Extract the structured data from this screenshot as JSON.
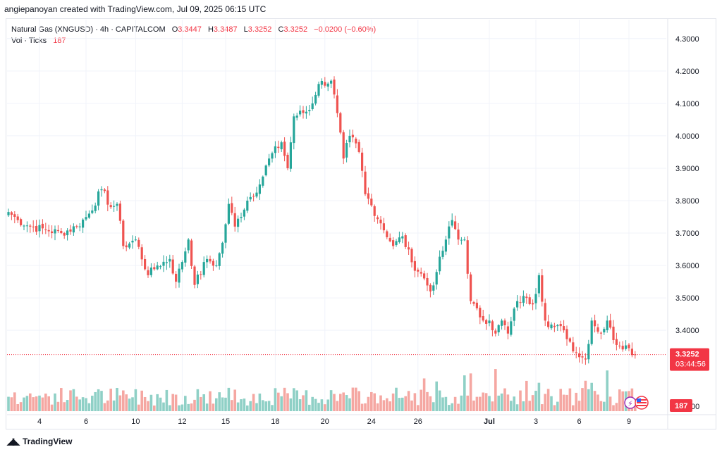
{
  "credit": "angiepanoyan created with TradingView.com, Jul 09, 2025 06:15 UTC",
  "header": {
    "symbol": "Natural Gas (XNGUSD) · 4h · CAPITALCOM",
    "o_label": "O",
    "o_value": "3.3447",
    "h_label": "H",
    "h_value": "3.3487",
    "l_label": "L",
    "l_value": "3.3252",
    "c_label": "C",
    "c_value": "3.3252",
    "change": "−0.0200 (−0.60%)",
    "vol_label": "Vol · Ticks",
    "vol_value": "187"
  },
  "footer": {
    "brand": "TradingView",
    "logo_icon": "tradingview-logo-icon"
  },
  "colors": {
    "up": "#26a69a",
    "down": "#ef5350",
    "up_vol": "#8fd0c6",
    "down_vol": "#f5a7a2",
    "price_tag": "#f23645"
  },
  "chart_data": {
    "type": "candlestick",
    "ylim": [
      3.27,
      4.33
    ],
    "y_ticks": [
      "4.3000",
      "4.2000",
      "4.1000",
      "4.0000",
      "3.9000",
      "3.8000",
      "3.7000",
      "3.6000",
      "3.5000",
      "3.4000"
    ],
    "x_ticks": [
      {
        "label": "4",
        "bar": 10
      },
      {
        "label": "6",
        "bar": 25
      },
      {
        "label": "10",
        "bar": 41
      },
      {
        "label": "12",
        "bar": 56
      },
      {
        "label": "15",
        "bar": 70
      },
      {
        "label": "18",
        "bar": 86
      },
      {
        "label": "20",
        "bar": 102
      },
      {
        "label": "24",
        "bar": 117
      },
      {
        "label": "26",
        "bar": 132
      },
      {
        "label": "Jul",
        "bar": 155
      },
      {
        "label": "3",
        "bar": 170
      },
      {
        "label": "6",
        "bar": 184
      },
      {
        "label": "9",
        "bar": 200
      }
    ],
    "last_price": "3.3252",
    "countdown": "03:44:56",
    "last_volume": "187",
    "volume_axis_tail": "00",
    "anchors": [
      {
        "bar": 0,
        "close": 3.765
      },
      {
        "bar": 3,
        "close": 3.74
      },
      {
        "bar": 7,
        "close": 3.72
      },
      {
        "bar": 12,
        "close": 3.71
      },
      {
        "bar": 17,
        "close": 3.7
      },
      {
        "bar": 22,
        "close": 3.72
      },
      {
        "bar": 26,
        "close": 3.76
      },
      {
        "bar": 30,
        "close": 3.835
      },
      {
        "bar": 33,
        "close": 3.78
      },
      {
        "bar": 35,
        "close": 3.79
      },
      {
        "bar": 37,
        "close": 3.66
      },
      {
        "bar": 41,
        "close": 3.68
      },
      {
        "bar": 45,
        "close": 3.57
      },
      {
        "bar": 48,
        "close": 3.6
      },
      {
        "bar": 52,
        "close": 3.62
      },
      {
        "bar": 54,
        "close": 3.55
      },
      {
        "bar": 58,
        "close": 3.68
      },
      {
        "bar": 60,
        "close": 3.54
      },
      {
        "bar": 64,
        "close": 3.62
      },
      {
        "bar": 67,
        "close": 3.6
      },
      {
        "bar": 69,
        "close": 3.67
      },
      {
        "bar": 71,
        "close": 3.79
      },
      {
        "bar": 73,
        "close": 3.72
      },
      {
        "bar": 77,
        "close": 3.8
      },
      {
        "bar": 81,
        "close": 3.85
      },
      {
        "bar": 84,
        "close": 3.93
      },
      {
        "bar": 88,
        "close": 3.98
      },
      {
        "bar": 90,
        "close": 3.9
      },
      {
        "bar": 92,
        "close": 4.06
      },
      {
        "bar": 97,
        "close": 4.08
      },
      {
        "bar": 100,
        "close": 4.16
      },
      {
        "bar": 104,
        "close": 4.17
      },
      {
        "bar": 106,
        "close": 4.07
      },
      {
        "bar": 108,
        "close": 3.93
      },
      {
        "bar": 110,
        "close": 4.0
      },
      {
        "bar": 113,
        "close": 3.95
      },
      {
        "bar": 115,
        "close": 3.82
      },
      {
        "bar": 120,
        "close": 3.73
      },
      {
        "bar": 124,
        "close": 3.66
      },
      {
        "bar": 127,
        "close": 3.69
      },
      {
        "bar": 130,
        "close": 3.61
      },
      {
        "bar": 134,
        "close": 3.56
      },
      {
        "bar": 136,
        "close": 3.52
      },
      {
        "bar": 138,
        "close": 3.58
      },
      {
        "bar": 141,
        "close": 3.68
      },
      {
        "bar": 143,
        "close": 3.74
      },
      {
        "bar": 145,
        "close": 3.68
      },
      {
        "bar": 147,
        "close": 3.68
      },
      {
        "bar": 149,
        "close": 3.49
      },
      {
        "bar": 152,
        "close": 3.44
      },
      {
        "bar": 155,
        "close": 3.43
      },
      {
        "bar": 157,
        "close": 3.39
      },
      {
        "bar": 159,
        "close": 3.43
      },
      {
        "bar": 161,
        "close": 3.39
      },
      {
        "bar": 164,
        "close": 3.49
      },
      {
        "bar": 167,
        "close": 3.5
      },
      {
        "bar": 169,
        "close": 3.48
      },
      {
        "bar": 171,
        "close": 3.57
      },
      {
        "bar": 173,
        "close": 3.43
      },
      {
        "bar": 176,
        "close": 3.41
      },
      {
        "bar": 179,
        "close": 3.4
      },
      {
        "bar": 183,
        "close": 3.33
      },
      {
        "bar": 186,
        "close": 3.31
      },
      {
        "bar": 188,
        "close": 3.43
      },
      {
        "bar": 191,
        "close": 3.39
      },
      {
        "bar": 193,
        "close": 3.43
      },
      {
        "bar": 195,
        "close": 3.37
      },
      {
        "bar": 200,
        "close": 3.345
      },
      {
        "bar": 202,
        "close": 3.3252
      }
    ],
    "high_volume_bars": [
      134,
      138,
      147,
      149,
      157,
      167,
      171,
      186,
      188,
      193
    ]
  }
}
